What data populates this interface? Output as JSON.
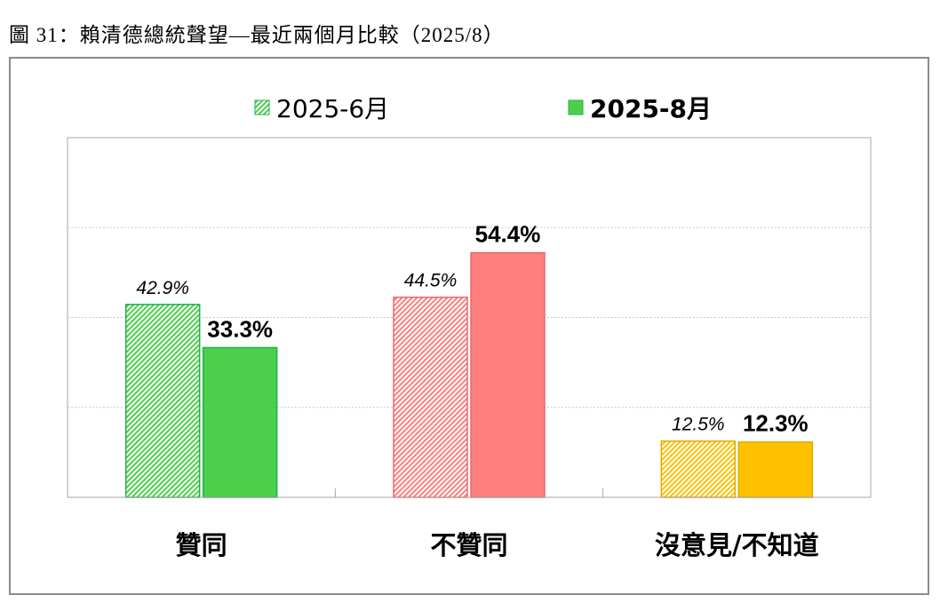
{
  "page": {
    "title": "圖 31：賴清德總統聲望—最近兩個月比較（2025/8）"
  },
  "chart_data": {
    "type": "bar",
    "categories": [
      "贊同",
      "不贊同",
      "沒意見/不知道"
    ],
    "series": [
      {
        "name": "2025-6月",
        "values": [
          42.9,
          44.5,
          12.5
        ],
        "labels": [
          "42.9%",
          "44.5%",
          "12.5%"
        ],
        "style": "hatched"
      },
      {
        "name": "2025-8月",
        "values": [
          33.3,
          54.4,
          12.3
        ],
        "labels": [
          "33.3%",
          "54.4%",
          "12.3%"
        ],
        "style": "solid"
      }
    ],
    "category_colors": [
      "#4cd04c",
      "#ff7f7f",
      "#ffc000"
    ],
    "category_stroke_colors": [
      "#22b04a",
      "#e86a6a",
      "#e6a800"
    ],
    "ylim": [
      0,
      80
    ],
    "grid": true,
    "legend_position": "top",
    "xlabel": "",
    "ylabel": ""
  }
}
